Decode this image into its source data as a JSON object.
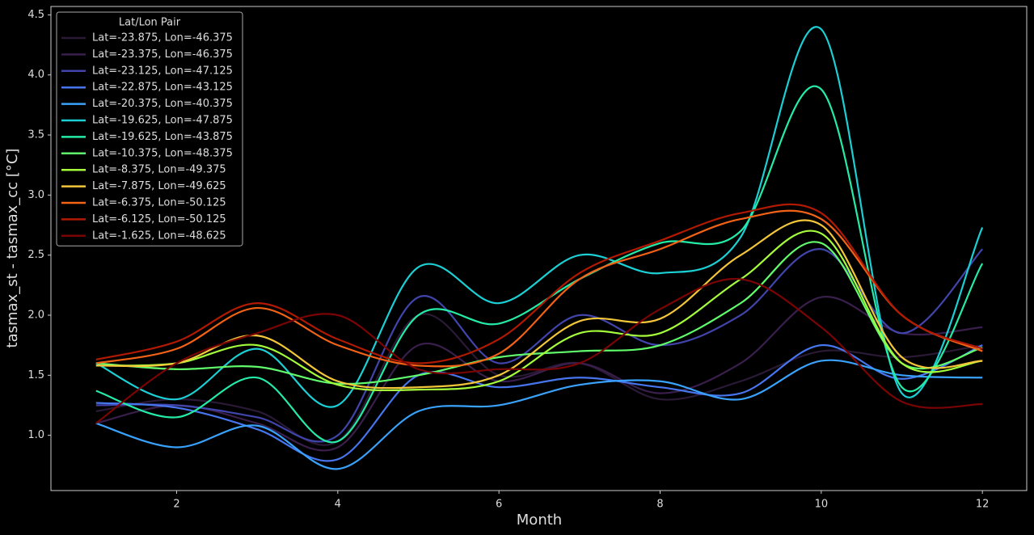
{
  "chart_data": {
    "type": "line",
    "x_label": "Month",
    "y_label": "tasmax_st - tasmax_cc [°C]",
    "legend_title": "Lat/Lon Pair",
    "legend": "upper left",
    "grid": false,
    "smooth": true,
    "x": [
      1,
      2,
      3,
      4,
      5,
      6,
      7,
      8,
      9,
      10,
      11,
      12
    ],
    "xlim": [
      0.44,
      12.55
    ],
    "xticks": [
      2,
      4,
      6,
      8,
      10,
      12
    ],
    "ylim": [
      0.54,
      4.57
    ],
    "yticks": [
      {
        "value": 1.0,
        "label": "1.0"
      },
      {
        "value": 1.5,
        "label": "1.5"
      },
      {
        "value": 2.0,
        "label": "2.0"
      },
      {
        "value": 2.5,
        "label": "2.5"
      },
      {
        "value": 3.0,
        "label": "3.0"
      },
      {
        "value": 3.5,
        "label": "3.5"
      },
      {
        "value": 4.0,
        "label": "4.0"
      },
      {
        "value": 4.5,
        "label": "4.5"
      }
    ],
    "series": [
      {
        "name": "Lat=-23.875, Lon=-46.375",
        "color": "#2a1a36",
        "values": [
          1.2,
          1.3,
          1.2,
          0.95,
          2.0,
          1.5,
          1.6,
          1.3,
          1.45,
          1.7,
          1.65,
          1.75
        ]
      },
      {
        "name": "Lat=-23.375, Lon=-46.375",
        "color": "#3a1f4c",
        "values": [
          1.1,
          1.25,
          1.1,
          0.9,
          1.75,
          1.45,
          1.6,
          1.35,
          1.6,
          2.15,
          1.85,
          1.9
        ]
      },
      {
        "name": "Lat=-23.125, Lon=-47.125",
        "color": "#4145ab",
        "values": [
          1.25,
          1.25,
          1.15,
          1.0,
          2.15,
          1.6,
          2.0,
          1.75,
          2.0,
          2.55,
          1.85,
          2.55
        ]
      },
      {
        "name": "Lat=-22.875, Lon=-43.125",
        "color": "#4675ed",
        "values": [
          1.27,
          1.23,
          1.05,
          0.8,
          1.5,
          1.4,
          1.48,
          1.4,
          1.35,
          1.75,
          1.47,
          1.75
        ]
      },
      {
        "name": "Lat=-20.375, Lon=-40.375",
        "color": "#39a2fc",
        "values": [
          1.1,
          0.9,
          1.08,
          0.72,
          1.2,
          1.25,
          1.42,
          1.45,
          1.3,
          1.62,
          1.5,
          1.48
        ]
      },
      {
        "name": "Lat=-19.625, Lon=-47.875",
        "color": "#1bcfd4",
        "values": [
          1.6,
          1.3,
          1.72,
          1.25,
          2.4,
          2.1,
          2.5,
          2.35,
          2.65,
          4.38,
          1.35,
          2.73
        ]
      },
      {
        "name": "Lat=-19.625, Lon=-43.875",
        "color": "#24eca6",
        "values": [
          1.37,
          1.15,
          1.48,
          0.95,
          2.0,
          1.93,
          2.3,
          2.6,
          2.7,
          3.88,
          1.4,
          2.43
        ]
      },
      {
        "name": "Lat=-10.375, Lon=-48.375",
        "color": "#61fc6c",
        "values": [
          1.6,
          1.55,
          1.57,
          1.43,
          1.5,
          1.65,
          1.7,
          1.75,
          2.1,
          2.6,
          1.6,
          1.73
        ]
      },
      {
        "name": "Lat=-8.375, Lon=-49.375",
        "color": "#a4fc3b",
        "values": [
          1.58,
          1.6,
          1.75,
          1.42,
          1.38,
          1.45,
          1.85,
          1.85,
          2.3,
          2.68,
          1.6,
          1.62
        ]
      },
      {
        "name": "Lat=-7.875, Lon=-49.625",
        "color": "#f3c63a",
        "values": [
          1.58,
          1.6,
          1.83,
          1.45,
          1.4,
          1.5,
          1.95,
          1.97,
          2.5,
          2.75,
          1.65,
          1.62
        ]
      },
      {
        "name": "Lat=-6.375, Lon=-50.125",
        "color": "#f36315",
        "values": [
          1.6,
          1.72,
          2.06,
          1.75,
          1.58,
          1.68,
          2.3,
          2.55,
          2.8,
          2.8,
          2.0,
          1.7
        ]
      },
      {
        "name": "Lat=-6.125, Lon=-50.125",
        "color": "#b11901",
        "values": [
          1.63,
          1.78,
          2.1,
          1.8,
          1.6,
          1.8,
          2.35,
          2.62,
          2.85,
          2.85,
          2.0,
          1.72
        ]
      },
      {
        "name": "Lat=-1.625, Lon=-48.625",
        "color": "#7a0403",
        "values": [
          1.1,
          1.6,
          1.85,
          2.0,
          1.55,
          1.55,
          1.6,
          2.05,
          2.3,
          1.9,
          1.28,
          1.26
        ]
      }
    ]
  }
}
